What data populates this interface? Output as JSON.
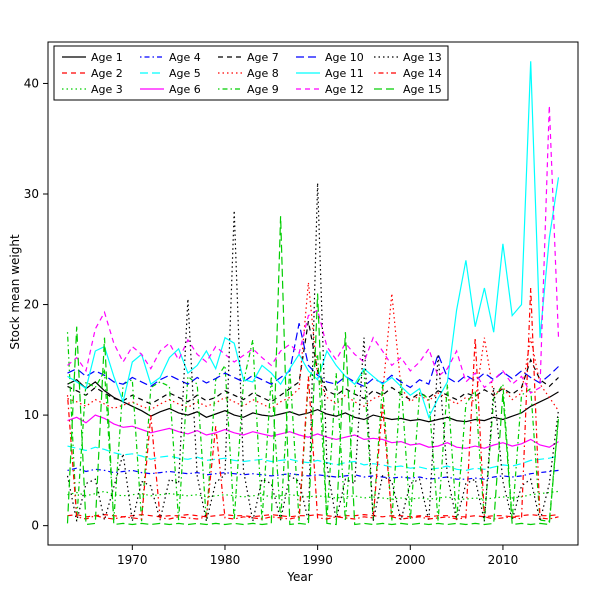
{
  "chart_data": {
    "type": "line",
    "title": "",
    "xlabel": "Year",
    "ylabel": "Stock mean weight",
    "grid": false,
    "xlim": [
      1960.9,
      2018.1
    ],
    "ylim": [
      -1.75,
      43.75
    ],
    "x_ticks": [
      1970,
      1980,
      1990,
      2000,
      2010
    ],
    "y_ticks": [
      0,
      10,
      20,
      30,
      40
    ],
    "legend": {
      "position": "top-left-inside",
      "columns": 5,
      "rows": 3,
      "border": true,
      "fill_order": "column-major"
    },
    "x": [
      1963,
      1964,
      1965,
      1966,
      1967,
      1968,
      1969,
      1970,
      1971,
      1972,
      1973,
      1974,
      1975,
      1976,
      1977,
      1978,
      1979,
      1980,
      1981,
      1982,
      1983,
      1984,
      1985,
      1986,
      1987,
      1988,
      1989,
      1990,
      1991,
      1992,
      1993,
      1994,
      1995,
      1996,
      1997,
      1998,
      1999,
      2000,
      2001,
      2002,
      2003,
      2004,
      2005,
      2006,
      2007,
      2008,
      2009,
      2010,
      2011,
      2012,
      2013,
      2014,
      2015,
      2016
    ],
    "series": [
      {
        "name": "Age 1",
        "color": "#000000",
        "linetype": "solid",
        "values": [
          12.8,
          13.2,
          12.4,
          13.0,
          12.2,
          11.6,
          11.2,
          10.8,
          10.4,
          9.9,
          10.3,
          10.6,
          10.2,
          10.0,
          10.3,
          9.8,
          10.1,
          10.4,
          10.0,
          9.8,
          10.2,
          10.0,
          9.9,
          10.1,
          10.3,
          10.0,
          10.2,
          10.5,
          10.1,
          9.9,
          10.2,
          9.8,
          9.6,
          10.0,
          9.8,
          9.6,
          9.7,
          9.5,
          9.6,
          9.4,
          9.6,
          9.8,
          9.5,
          9.4,
          9.6,
          9.5,
          9.8,
          9.6,
          9.9,
          10.2,
          10.8,
          11.2,
          11.6,
          12.1
        ]
      },
      {
        "name": "Age 2",
        "color": "#FF0000",
        "linetype": "dashed",
        "values": [
          0.9,
          1.0,
          0.8,
          0.9,
          1.0,
          0.9,
          0.8,
          0.9,
          1.0,
          0.9,
          0.8,
          0.9,
          0.9,
          1.0,
          0.9,
          0.8,
          0.9,
          1.0,
          0.9,
          0.9,
          0.8,
          0.9,
          1.0,
          0.9,
          0.8,
          0.9,
          0.9,
          1.0,
          0.9,
          0.8,
          0.9,
          0.9,
          1.0,
          0.9,
          0.8,
          0.9,
          0.9,
          0.8,
          0.9,
          0.8,
          0.9,
          0.9,
          0.8,
          0.8,
          0.9,
          0.8,
          0.9,
          0.9,
          0.8,
          0.9,
          1.0,
          0.9,
          0.9,
          1.0
        ]
      },
      {
        "name": "Age 3",
        "color": "#00CD00",
        "linetype": "dotted",
        "values": [
          2.8,
          3.0,
          2.7,
          2.9,
          3.1,
          2.8,
          2.7,
          2.8,
          2.9,
          2.7,
          2.8,
          2.9,
          2.8,
          2.7,
          2.8,
          2.6,
          2.7,
          2.8,
          2.7,
          2.6,
          2.7,
          2.8,
          2.6,
          2.7,
          2.8,
          2.7,
          2.6,
          2.7,
          2.6,
          2.5,
          2.6,
          2.7,
          2.5,
          2.6,
          2.5,
          2.4,
          2.5,
          2.4,
          2.5,
          2.4,
          2.5,
          2.6,
          2.4,
          2.4,
          2.5,
          2.4,
          2.5,
          2.6,
          2.5,
          2.6,
          2.8,
          2.9,
          3.0,
          3.1
        ]
      },
      {
        "name": "Age 4",
        "color": "#0000FF",
        "linetype": "dotdash",
        "values": [
          5.0,
          5.2,
          4.9,
          5.1,
          5.0,
          4.8,
          4.9,
          5.0,
          4.8,
          4.7,
          4.8,
          4.9,
          4.8,
          4.7,
          4.8,
          4.6,
          4.7,
          4.8,
          4.7,
          4.6,
          4.7,
          4.6,
          4.5,
          4.6,
          4.7,
          4.6,
          4.5,
          4.6,
          4.5,
          4.4,
          4.5,
          4.6,
          4.4,
          4.5,
          4.4,
          4.3,
          4.4,
          4.3,
          4.4,
          4.2,
          4.3,
          4.4,
          4.2,
          4.2,
          4.3,
          4.2,
          4.4,
          4.5,
          4.4,
          4.5,
          4.7,
          4.8,
          4.9,
          5.0
        ]
      },
      {
        "name": "Age 5",
        "color": "#00FFFF",
        "linetype": "longdash",
        "values": [
          7.2,
          7.0,
          6.8,
          7.1,
          6.9,
          6.6,
          6.4,
          6.5,
          6.3,
          6.0,
          6.2,
          6.3,
          6.1,
          6.0,
          6.2,
          5.9,
          6.0,
          6.1,
          5.9,
          5.8,
          5.9,
          6.0,
          5.8,
          5.9,
          6.0,
          5.8,
          5.7,
          5.9,
          5.7,
          5.5,
          5.7,
          5.8,
          5.5,
          5.6,
          5.5,
          5.3,
          5.4,
          5.2,
          5.3,
          5.1,
          5.2,
          5.4,
          5.1,
          5.0,
          5.2,
          5.1,
          5.3,
          5.5,
          5.4,
          5.6,
          5.9,
          6.0,
          6.1,
          6.3
        ]
      },
      {
        "name": "Age 6",
        "color": "#FF00FF",
        "linetype": "solid",
        "values": [
          9.5,
          9.8,
          9.3,
          10.0,
          9.7,
          9.2,
          8.9,
          9.0,
          8.7,
          8.4,
          8.6,
          8.8,
          8.5,
          8.3,
          8.6,
          8.2,
          8.4,
          8.7,
          8.4,
          8.2,
          8.5,
          8.3,
          8.1,
          8.3,
          8.5,
          8.2,
          8.0,
          8.3,
          8.0,
          7.8,
          8.0,
          8.2,
          7.8,
          7.9,
          7.8,
          7.5,
          7.6,
          7.3,
          7.4,
          7.1,
          7.2,
          7.5,
          7.1,
          7.0,
          7.2,
          7.0,
          7.3,
          7.5,
          7.2,
          7.4,
          7.8,
          7.3,
          7.1,
          7.6
        ]
      },
      {
        "name": "Age 7",
        "color": "#000000",
        "linetype": "dashed",
        "values": [
          12.6,
          12.2,
          11.8,
          12.5,
          12.0,
          11.5,
          11.3,
          11.8,
          11.4,
          11.0,
          11.5,
          12.0,
          11.6,
          11.2,
          11.8,
          11.3,
          11.6,
          12.2,
          11.8,
          11.4,
          12.0,
          11.6,
          11.2,
          11.8,
          12.4,
          13.0,
          18.5,
          14.0,
          12.2,
          11.8,
          12.4,
          11.9,
          11.5,
          12.2,
          11.8,
          12.5,
          11.9,
          11.4,
          12.0,
          11.6,
          12.2,
          11.8,
          11.4,
          12.0,
          11.7,
          12.3,
          11.8,
          12.4,
          11.9,
          12.5,
          15.0,
          13.2,
          12.6,
          13.4
        ]
      },
      {
        "name": "Age 8",
        "color": "#FF0000",
        "linetype": "dotted",
        "values": [
          11.5,
          11.2,
          10.8,
          11.4,
          11.0,
          10.6,
          10.9,
          11.2,
          10.8,
          10.5,
          11.0,
          11.4,
          11.0,
          10.7,
          11.2,
          10.8,
          11.1,
          11.6,
          11.2,
          10.8,
          11.4,
          11.0,
          10.6,
          11.2,
          11.6,
          12.4,
          22.0,
          13.5,
          11.6,
          11.0,
          11.8,
          11.2,
          10.8,
          11.5,
          11.8,
          21.0,
          12.5,
          11.2,
          11.8,
          11.3,
          12.0,
          11.5,
          11.0,
          11.6,
          11.2,
          17.0,
          11.8,
          12.5,
          11.4,
          12.0,
          17.0,
          12.8,
          11.6,
          10.4
        ]
      },
      {
        "name": "Age 9",
        "color": "#00CD00",
        "linetype": "dotdash",
        "values": [
          17.5,
          0.5,
          13.0,
          12.5,
          14.0,
          0.5,
          12.8,
          13.2,
          0.4,
          12.5,
          13.0,
          12.6,
          0.5,
          13.5,
          12.8,
          0.4,
          13.2,
          14.5,
          0.5,
          13.0,
          16.8,
          0.4,
          13.5,
          0.5,
          14.2,
          0.4,
          13.0,
          15.5,
          0.5,
          13.8,
          0.4,
          12.5,
          14.0,
          0.5,
          12.8,
          0.4,
          13.2,
          0.5,
          12.0,
          11.5,
          0.4,
          12.8,
          0.5,
          11.0,
          12.2,
          0.4,
          11.5,
          12.8,
          0.5,
          11.8,
          12.4,
          0.5,
          0.4,
          9.8
        ]
      },
      {
        "name": "Age 10",
        "color": "#0000FF",
        "linetype": "longdash",
        "values": [
          13.8,
          14.2,
          13.5,
          14.0,
          13.6,
          13.0,
          12.8,
          13.4,
          13.0,
          12.6,
          13.2,
          13.6,
          13.2,
          12.8,
          13.4,
          12.9,
          13.3,
          13.8,
          13.4,
          13.0,
          13.6,
          13.2,
          12.8,
          13.4,
          14.0,
          18.3,
          14.5,
          13.6,
          13.0,
          12.8,
          13.5,
          13.0,
          12.6,
          13.3,
          12.9,
          13.6,
          13.0,
          12.5,
          13.2,
          12.8,
          15.5,
          13.4,
          12.9,
          13.6,
          13.1,
          13.8,
          13.2,
          13.9,
          13.3,
          14.0,
          13.4,
          12.9,
          13.6,
          14.4
        ]
      },
      {
        "name": "Age 11",
        "color": "#00FFFF",
        "linetype": "solid",
        "values": [
          13.5,
          13.0,
          12.4,
          15.8,
          16.2,
          13.5,
          11.2,
          14.8,
          15.5,
          12.8,
          13.4,
          15.2,
          16.0,
          13.8,
          14.5,
          15.8,
          14.2,
          17.0,
          16.5,
          13.2,
          13.0,
          14.5,
          13.8,
          12.8,
          14.2,
          15.5,
          14.0,
          13.2,
          15.8,
          14.5,
          13.5,
          12.8,
          14.2,
          13.5,
          12.8,
          13.4,
          12.6,
          11.8,
          12.4,
          9.8,
          11.5,
          13.0,
          19.5,
          24.0,
          18.0,
          21.5,
          17.5,
          25.5,
          19.0,
          20.0,
          42.0,
          17.0,
          26.0,
          31.5
        ]
      },
      {
        "name": "Age 12",
        "color": "#FF00FF",
        "linetype": "dashed",
        "values": [
          14.5,
          15.2,
          14.0,
          17.8,
          19.3,
          16.5,
          14.8,
          16.2,
          15.5,
          14.2,
          15.8,
          16.5,
          15.0,
          16.8,
          15.5,
          14.8,
          16.2,
          15.5,
          14.8,
          15.4,
          16.0,
          15.2,
          14.5,
          15.8,
          16.4,
          15.6,
          19.0,
          19.5,
          16.2,
          15.0,
          16.5,
          15.5,
          14.8,
          17.0,
          15.8,
          14.5,
          15.2,
          14.0,
          14.8,
          16.0,
          13.5,
          14.2,
          15.8,
          13.0,
          13.8,
          12.5,
          13.2,
          14.0,
          12.8,
          13.5,
          12.0,
          12.5,
          38.0,
          17.0
        ]
      },
      {
        "name": "Age 13",
        "color": "#000000",
        "linetype": "dotted",
        "values": [
          4.5,
          0.4,
          3.8,
          4.2,
          0.5,
          3.5,
          6.5,
          0.4,
          4.0,
          3.6,
          0.5,
          4.2,
          3.8,
          20.5,
          4.5,
          0.4,
          3.9,
          4.6,
          28.5,
          5.0,
          0.4,
          4.2,
          3.8,
          0.5,
          4.5,
          4.0,
          0.4,
          31.0,
          5.5,
          0.5,
          4.2,
          3.8,
          17.0,
          0.4,
          4.5,
          4.0,
          0.5,
          3.8,
          4.2,
          0.4,
          15.5,
          4.5,
          0.5,
          3.8,
          4.2,
          0.4,
          12.5,
          4.0,
          0.5,
          3.6,
          4.2,
          0.4,
          3.8,
          10.5
        ]
      },
      {
        "name": "Age 14",
        "color": "#FF0000",
        "linetype": "dotdash",
        "values": [
          11.8,
          0.8,
          0.6,
          0.9,
          0.7,
          0.6,
          0.8,
          0.7,
          0.6,
          10.0,
          0.7,
          0.6,
          0.8,
          0.7,
          0.6,
          0.8,
          9.0,
          0.7,
          0.6,
          0.8,
          0.7,
          0.6,
          0.8,
          0.7,
          0.6,
          0.8,
          13.5,
          0.7,
          0.6,
          0.8,
          0.7,
          0.6,
          0.8,
          0.7,
          11.0,
          0.8,
          0.6,
          0.7,
          0.8,
          0.6,
          0.7,
          0.8,
          0.6,
          0.7,
          17.0,
          0.8,
          0.6,
          0.7,
          0.8,
          0.6,
          21.5,
          0.7,
          0.6,
          0.8
        ]
      },
      {
        "name": "Age 15",
        "color": "#00CD00",
        "linetype": "longdash",
        "values": [
          0.2,
          18.0,
          0.1,
          0.2,
          17.0,
          0.1,
          0.2,
          0.1,
          0.2,
          0.1,
          0.2,
          0.1,
          0.2,
          0.1,
          0.2,
          0.1,
          0.2,
          0.1,
          0.2,
          0.1,
          0.2,
          0.1,
          0.2,
          28.0,
          0.1,
          0.2,
          0.1,
          21.0,
          0.2,
          0.1,
          17.5,
          0.1,
          0.2,
          0.1,
          0.2,
          0.1,
          0.2,
          0.1,
          0.2,
          0.1,
          0.2,
          0.1,
          0.2,
          0.1,
          0.2,
          0.1,
          0.2,
          12.0,
          0.1,
          0.2,
          0.1,
          0.2,
          0.1,
          9.8
        ]
      }
    ]
  }
}
